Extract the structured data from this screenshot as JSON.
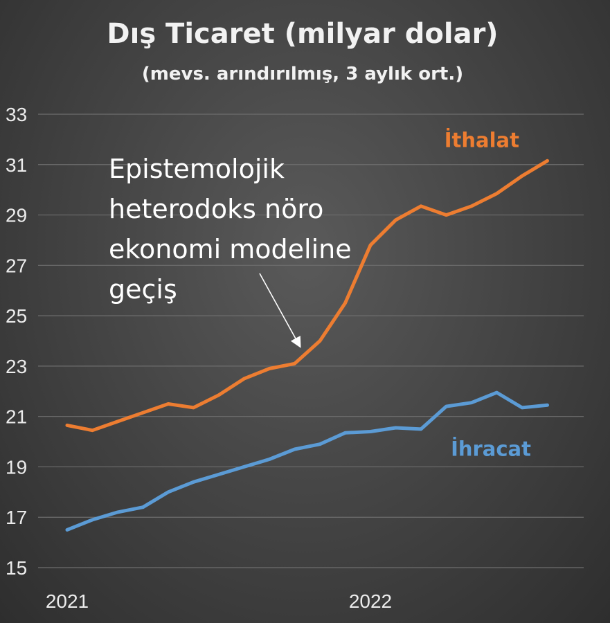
{
  "chart_data": {
    "type": "line",
    "title": "Dış Ticaret (milyar dolar)",
    "subtitle": "(mevs. arındırılmış, 3 aylık ort.)",
    "xlabel": "",
    "ylabel": "",
    "ylim": [
      15,
      33
    ],
    "yticks": [
      15,
      17,
      19,
      21,
      23,
      25,
      27,
      29,
      31,
      33
    ],
    "xtick_labels": [
      {
        "label": "2021",
        "index": 0
      },
      {
        "label": "2022",
        "index": 12
      }
    ],
    "x": [
      "2021-01",
      "2021-02",
      "2021-03",
      "2021-04",
      "2021-05",
      "2021-06",
      "2021-07",
      "2021-08",
      "2021-09",
      "2021-10",
      "2021-11",
      "2021-12",
      "2022-01",
      "2022-02",
      "2022-03",
      "2022-04",
      "2022-05",
      "2022-06",
      "2022-07",
      "2022-08",
      "2022-09"
    ],
    "series": [
      {
        "name": "İthalat",
        "color": "#ed7d31",
        "values": [
          20.65,
          20.45,
          20.8,
          21.15,
          21.5,
          21.35,
          21.85,
          22.5,
          22.9,
          23.1,
          24.0,
          25.5,
          27.8,
          28.8,
          29.35,
          29.0,
          29.35,
          29.85,
          30.55,
          31.15,
          null
        ]
      },
      {
        "name": "İhracat",
        "color": "#5b9bd5",
        "values": [
          16.5,
          16.9,
          17.2,
          17.4,
          18.0,
          18.4,
          18.7,
          19.0,
          19.3,
          19.7,
          19.9,
          20.35,
          20.4,
          20.55,
          20.5,
          21.4,
          21.55,
          21.95,
          21.35,
          21.45,
          null
        ]
      }
    ],
    "annotation": {
      "lines": [
        "Epistemolojik",
        "heterodoks nöro",
        "ekonomi modeline",
        "geçiş"
      ]
    },
    "grid": true,
    "legend": "inline labels near line ends"
  }
}
